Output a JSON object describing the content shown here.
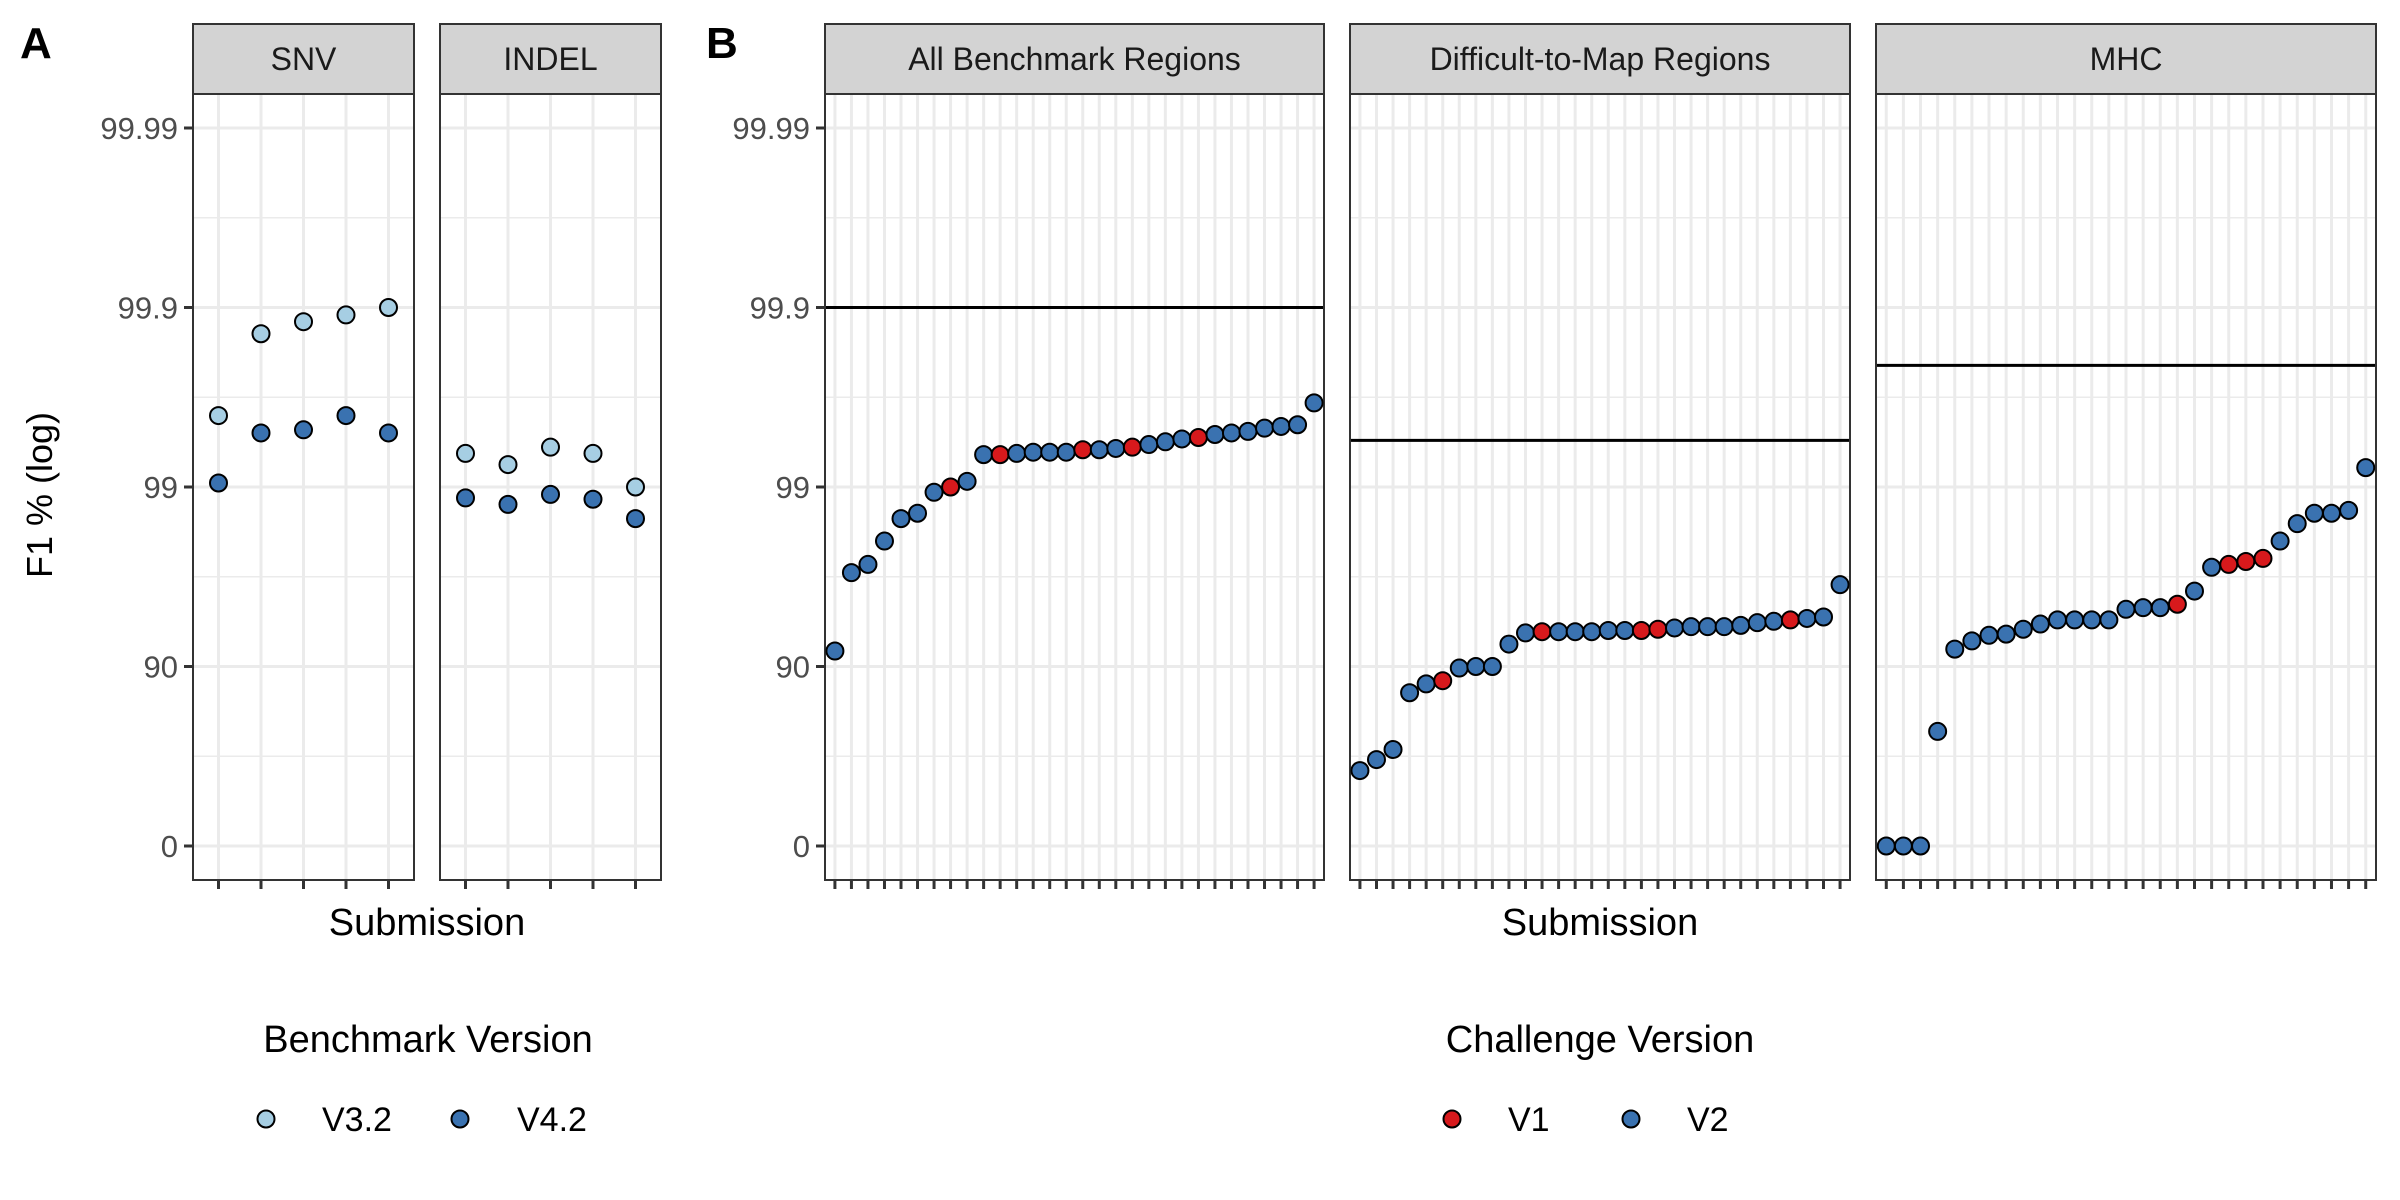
{
  "colors": {
    "strip_fill": "#d3d3d3",
    "grid": "#ebebeb",
    "v32": "#a6cee3",
    "v42": "#3a72b0",
    "challenge_v1": "#d7191c",
    "challenge_v2": "#3a72b0",
    "ref_line": "#000000"
  },
  "panel_labels": {
    "a": "A",
    "b": "B"
  },
  "y_axis": {
    "title": "F1 % (log)",
    "ticks": [
      "0",
      "90",
      "99",
      "99.9",
      "99.99"
    ],
    "scale": "log10 error scale: -log10(1 - F1/100); 0 at bottom, 99.99 at top"
  },
  "chart_data": [
    {
      "type": "scatter",
      "panel": "A",
      "xlabel": "Submission",
      "ylabel": "F1 % (log)",
      "grid": true,
      "legend": {
        "title": "Benchmark Version",
        "placement": "bottom",
        "items": [
          {
            "label": "V3.2",
            "color": "#a6cee3"
          },
          {
            "label": "V4.2",
            "color": "#3a72b0"
          }
        ]
      },
      "facets": [
        {
          "label": "SNV",
          "x": [
            1,
            2,
            3,
            4,
            5
          ],
          "series": [
            {
              "name": "V3.2",
              "values": [
                99.6,
                99.86,
                99.88,
                99.89,
                99.9
              ]
            },
            {
              "name": "V4.2",
              "values": [
                99.05,
                99.5,
                99.52,
                99.6,
                99.5
              ]
            }
          ]
        },
        {
          "label": "INDEL",
          "x": [
            1,
            2,
            3,
            4,
            5
          ],
          "series": [
            {
              "name": "V3.2",
              "values": [
                99.35,
                99.25,
                99.4,
                99.35,
                99.0
              ]
            },
            {
              "name": "V4.2",
              "values": [
                98.85,
                98.75,
                98.9,
                98.83,
                98.5
              ]
            }
          ]
        }
      ]
    },
    {
      "type": "scatter",
      "panel": "B",
      "xlabel": "Submission",
      "ylabel": "F1 % (log)",
      "grid": true,
      "legend": {
        "title": "Challenge Version",
        "placement": "bottom",
        "items": [
          {
            "label": "V1",
            "color": "#d7191c"
          },
          {
            "label": "V2",
            "color": "#3a72b0"
          }
        ]
      },
      "facets": [
        {
          "label": "All Benchmark Regions",
          "reference_line": 99.9,
          "values": [
            91.8,
            97,
            97.3,
            98,
            98.5,
            98.6,
            98.93,
            99,
            99.07,
            99.34,
            99.34,
            99.35,
            99.36,
            99.36,
            99.36,
            99.38,
            99.38,
            99.39,
            99.4,
            99.42,
            99.44,
            99.46,
            99.47,
            99.49,
            99.5,
            99.51,
            99.53,
            99.54,
            99.55,
            99.66
          ],
          "challenge": [
            "V2",
            "V2",
            "V2",
            "V2",
            "V2",
            "V2",
            "V2",
            "V1",
            "V2",
            "V2",
            "V1",
            "V2",
            "V2",
            "V2",
            "V2",
            "V1",
            "V2",
            "V2",
            "V1",
            "V2",
            "V2",
            "V2",
            "V1",
            "V2",
            "V2",
            "V2",
            "V2",
            "V2",
            "V2",
            "V2"
          ]
        },
        {
          "label": "Difficult-to-Map Regions",
          "reference_line": 99.45,
          "values": [
            62,
            67,
            71,
            86,
            87.5,
            88,
            89.8,
            90,
            90,
            92.5,
            93.5,
            93.6,
            93.6,
            93.6,
            93.6,
            93.7,
            93.7,
            93.7,
            93.8,
            93.9,
            94,
            94,
            94,
            94.1,
            94.3,
            94.4,
            94.5,
            94.6,
            94.7,
            96.5
          ],
          "challenge": [
            "V2",
            "V2",
            "V2",
            "V2",
            "V2",
            "V1",
            "V2",
            "V2",
            "V2",
            "V2",
            "V2",
            "V1",
            "V2",
            "V2",
            "V2",
            "V2",
            "V2",
            "V1",
            "V1",
            "V2",
            "V2",
            "V2",
            "V2",
            "V2",
            "V2",
            "V2",
            "V1",
            "V2",
            "V2",
            "V2"
          ]
        },
        {
          "label": "MHC",
          "reference_line": 99.79,
          "values": [
            0,
            0,
            0,
            77,
            92,
            92.8,
            93.3,
            93.4,
            93.8,
            94.2,
            94.5,
            94.5,
            94.5,
            94.5,
            95.2,
            95.3,
            95.3,
            95.5,
            96.2,
            97.2,
            97.3,
            97.4,
            97.5,
            98,
            98.4,
            98.6,
            98.6,
            98.65,
            99.22
          ],
          "challenge": [
            "V2",
            "V2",
            "V2",
            "V2",
            "V2",
            "V2",
            "V2",
            "V2",
            "V2",
            "V2",
            "V2",
            "V2",
            "V2",
            "V2",
            "V2",
            "V2",
            "V2",
            "V1",
            "V2",
            "V2",
            "V1",
            "V1",
            "V1",
            "V2",
            "V2",
            "V2",
            "V2",
            "V2",
            "V2"
          ]
        }
      ]
    }
  ]
}
